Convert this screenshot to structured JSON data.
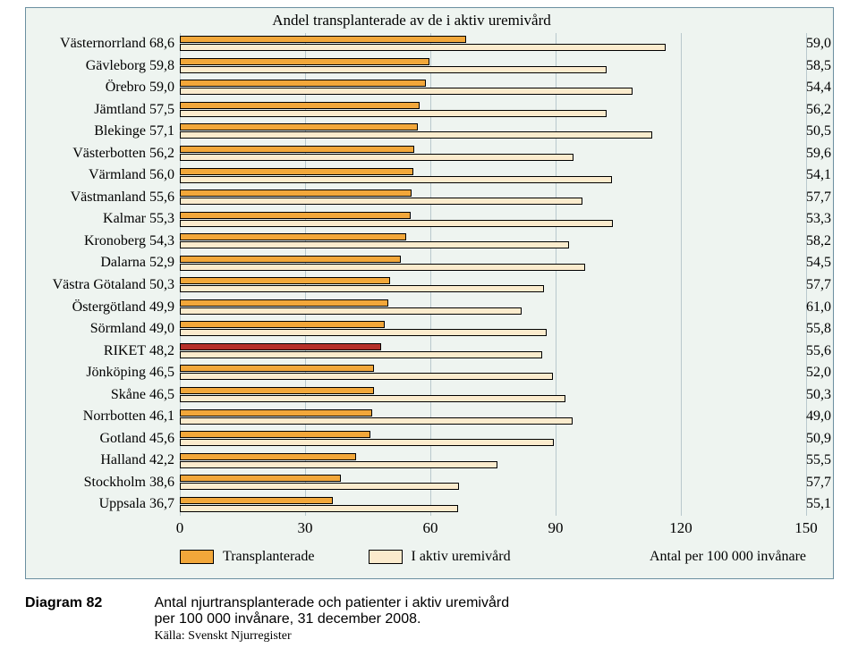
{
  "title": "Andel transplanterade av de i aktiv uremivård",
  "chart": {
    "type": "bar",
    "orientation": "horizontal",
    "xlim": [
      0,
      150
    ],
    "xtick_step": 30,
    "xticks": [
      0,
      30,
      60,
      90,
      120,
      150
    ],
    "background_color": "#eef4f0",
    "grid_color": "#b9c8cd",
    "border_color": "#6b8fa0",
    "bar_border": "#000000",
    "series": [
      {
        "key": "transplanterade",
        "label": "Transplanterade",
        "color": "#f2a73a"
      },
      {
        "key": "aktiv",
        "label": "I aktiv uremivård",
        "color": "#fbebcd"
      }
    ],
    "highlight_row": "RIKET",
    "highlight_color": "#b6302a",
    "axis_label": "Antal per 100 000 invånare",
    "label_fontsize": 16,
    "rows": [
      {
        "name": "Västernorrland",
        "transplanterade": 68.6,
        "aktiv_total": 116.3,
        "pct": 59.0
      },
      {
        "name": "Gävleborg",
        "transplanterade": 59.8,
        "aktiv_total": 102.2,
        "pct": 58.5
      },
      {
        "name": "Örebro",
        "transplanterade": 59.0,
        "aktiv_total": 108.5,
        "pct": 54.4
      },
      {
        "name": "Jämtland",
        "transplanterade": 57.5,
        "aktiv_total": 102.3,
        "pct": 56.2
      },
      {
        "name": "Blekinge",
        "transplanterade": 57.1,
        "aktiv_total": 113.1,
        "pct": 50.5
      },
      {
        "name": "Västerbotten",
        "transplanterade": 56.2,
        "aktiv_total": 94.3,
        "pct": 59.6
      },
      {
        "name": "Värmland",
        "transplanterade": 56.0,
        "aktiv_total": 103.5,
        "pct": 54.1
      },
      {
        "name": "Västmanland",
        "transplanterade": 55.6,
        "aktiv_total": 96.4,
        "pct": 57.7
      },
      {
        "name": "Kalmar",
        "transplanterade": 55.3,
        "aktiv_total": 103.8,
        "pct": 53.3
      },
      {
        "name": "Kronoberg",
        "transplanterade": 54.3,
        "aktiv_total": 93.3,
        "pct": 58.2
      },
      {
        "name": "Dalarna",
        "transplanterade": 52.9,
        "aktiv_total": 97.1,
        "pct": 54.5
      },
      {
        "name": "Västra Götaland",
        "transplanterade": 50.3,
        "aktiv_total": 87.2,
        "pct": 57.7
      },
      {
        "name": "Östergötland",
        "transplanterade": 49.9,
        "aktiv_total": 81.8,
        "pct": 61.0
      },
      {
        "name": "Sörmland",
        "transplanterade": 49.0,
        "aktiv_total": 87.8,
        "pct": 55.8
      },
      {
        "name": "RIKET",
        "transplanterade": 48.2,
        "aktiv_total": 86.7,
        "pct": 55.6
      },
      {
        "name": "Jönköping",
        "transplanterade": 46.5,
        "aktiv_total": 89.4,
        "pct": 52.0
      },
      {
        "name": "Skåne",
        "transplanterade": 46.5,
        "aktiv_total": 92.4,
        "pct": 50.3
      },
      {
        "name": "Norrbotten",
        "transplanterade": 46.1,
        "aktiv_total": 94.1,
        "pct": 49.0
      },
      {
        "name": "Gotland",
        "transplanterade": 45.6,
        "aktiv_total": 89.6,
        "pct": 50.9
      },
      {
        "name": "Halland",
        "transplanterade": 42.2,
        "aktiv_total": 76.0,
        "pct": 55.5
      },
      {
        "name": "Stockholm",
        "transplanterade": 38.6,
        "aktiv_total": 66.9,
        "pct": 57.7
      },
      {
        "name": "Uppsala",
        "transplanterade": 36.7,
        "aktiv_total": 66.6,
        "pct": 55.1
      }
    ]
  },
  "caption": {
    "diagram_label": "Diagram 82",
    "text_line1": "Antal njurtransplanterade och patienter i aktiv uremivård",
    "text_line2": "per 100 000 invånare, 31 december 2008.",
    "source": "Källa: Svenskt Njurregister"
  }
}
